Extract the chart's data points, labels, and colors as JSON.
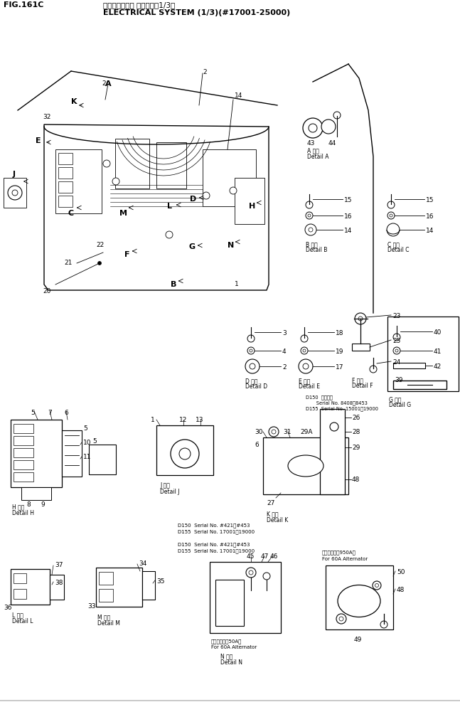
{
  "title_line1": "エレクトリカル システム（1/3）",
  "title_line2": "ELECTRICAL SYSTEM (1/3)(#17001-25000)",
  "fig_label": "FIG.161C",
  "bg_color": "#ffffff",
  "fig_width": 6.47,
  "fig_height": 9.94,
  "dpi": 100
}
